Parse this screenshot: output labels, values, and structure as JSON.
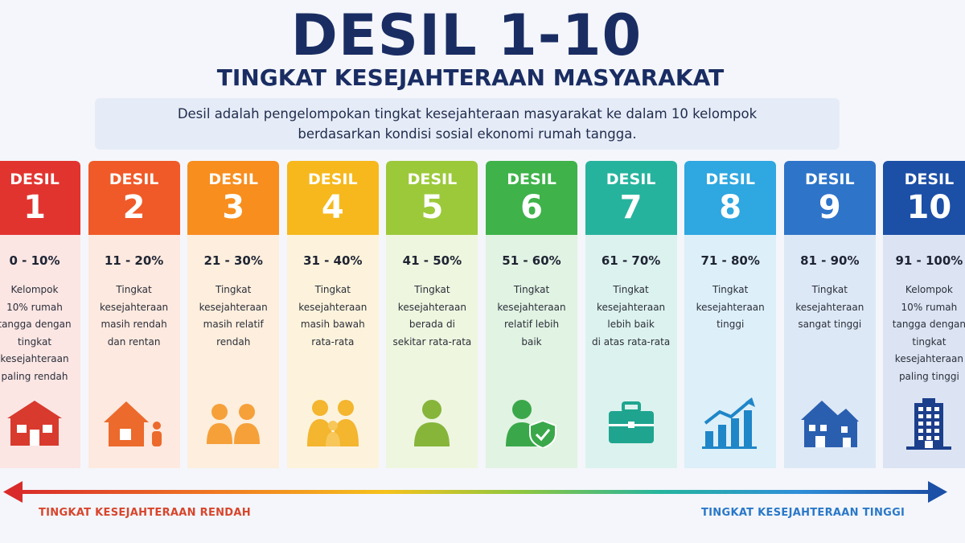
{
  "title": "DESIL 1-10",
  "subtitle": "TINGKAT KESEJAHTERAAN MASYARAKAT",
  "description": {
    "line1": "Desil adalah pengelompokan tingkat kesejahteraan masyarakat ke dalam 10 kelompok",
    "line2": "berdasarkan kondisi sosial ekonomi rumah tangga."
  },
  "deciles": [
    {
      "label": "DESIL",
      "number": "1",
      "range": "0 - 10%",
      "lines": [
        "Kelompok",
        "10% rumah",
        "tangga dengan",
        "tingkat",
        "kesejahteraan",
        "paling rendah"
      ],
      "color": "#e2342f",
      "bg": "#fbe6e4",
      "icon": "house-icon",
      "icon_color": "#d83a2e"
    },
    {
      "label": "DESIL",
      "number": "2",
      "range": "11 - 20%",
      "lines": [
        "Tingkat",
        "kesejahteraan",
        "masih rendah",
        "dan rentan"
      ],
      "color": "#f05a28",
      "bg": "#fde9df",
      "icon": "house-person-icon",
      "icon_color": "#ec6a2c"
    },
    {
      "label": "DESIL",
      "number": "3",
      "range": "21 - 30%",
      "lines": [
        "Tingkat",
        "kesejahteraan",
        "masih relatif",
        "rendah"
      ],
      "color": "#f78e1e",
      "bg": "#fdeedd",
      "icon": "two-people-icon",
      "icon_color": "#f6a03a"
    },
    {
      "label": "DESIL",
      "number": "4",
      "range": "31 - 40%",
      "lines": [
        "Tingkat",
        "kesejahteraan",
        "masih bawah",
        "rata-rata"
      ],
      "color": "#f6b81c",
      "bg": "#fdf3dc",
      "icon": "family-icon",
      "icon_color": "#f4b52f"
    },
    {
      "label": "DESIL",
      "number": "5",
      "range": "41 - 50%",
      "lines": [
        "Tingkat",
        "kesejahteraan",
        "berada di",
        "sekitar rata-rata"
      ],
      "color": "#9cc93a",
      "bg": "#eef6df",
      "icon": "person-icon",
      "icon_color": "#86b53a"
    },
    {
      "label": "DESIL",
      "number": "6",
      "range": "51 - 60%",
      "lines": [
        "Tingkat",
        "kesejahteraan",
        "relatif lebih",
        "baik"
      ],
      "color": "#3fb24a",
      "bg": "#e1f3e3",
      "icon": "person-shield-icon",
      "icon_color": "#3aa84a"
    },
    {
      "label": "DESIL",
      "number": "7",
      "range": "61 - 70%",
      "lines": [
        "Tingkat",
        "kesejahteraan",
        "lebih baik",
        "di atas rata-rata"
      ],
      "color": "#26b39e",
      "bg": "#dcf2ee",
      "icon": "briefcase-icon",
      "icon_color": "#1fa58f"
    },
    {
      "label": "DESIL",
      "number": "8",
      "range": "71 - 80%",
      "lines": [
        "Tingkat",
        "kesejahteraan",
        "tinggi"
      ],
      "color": "#2fa7e0",
      "bg": "#ddeff9",
      "icon": "growth-chart-icon",
      "icon_color": "#1f86c8"
    },
    {
      "label": "DESIL",
      "number": "9",
      "range": "81 - 90%",
      "lines": [
        "Tingkat",
        "kesejahteraan",
        "sangat tinggi"
      ],
      "color": "#2e74c9",
      "bg": "#dde8f6",
      "icon": "big-house-icon",
      "icon_color": "#2a5fb0"
    },
    {
      "label": "DESIL",
      "number": "10",
      "range": "91 - 100%",
      "lines": [
        "Kelompok",
        "10% rumah",
        "tangga dengan",
        "tingkat",
        "kesejahteraan",
        "paling tinggi"
      ],
      "color": "#1c4fa6",
      "bg": "#dce4f3",
      "icon": "building-icon",
      "icon_color": "#1c3f8c"
    }
  ],
  "scale": {
    "low_label": "TINGKAT KESEJAHTERAAN RENDAH",
    "high_label": "TINGKAT KESEJAHTERAAN TINGGI",
    "low_color": "#e2342f",
    "high_color": "#1c4fa6"
  }
}
